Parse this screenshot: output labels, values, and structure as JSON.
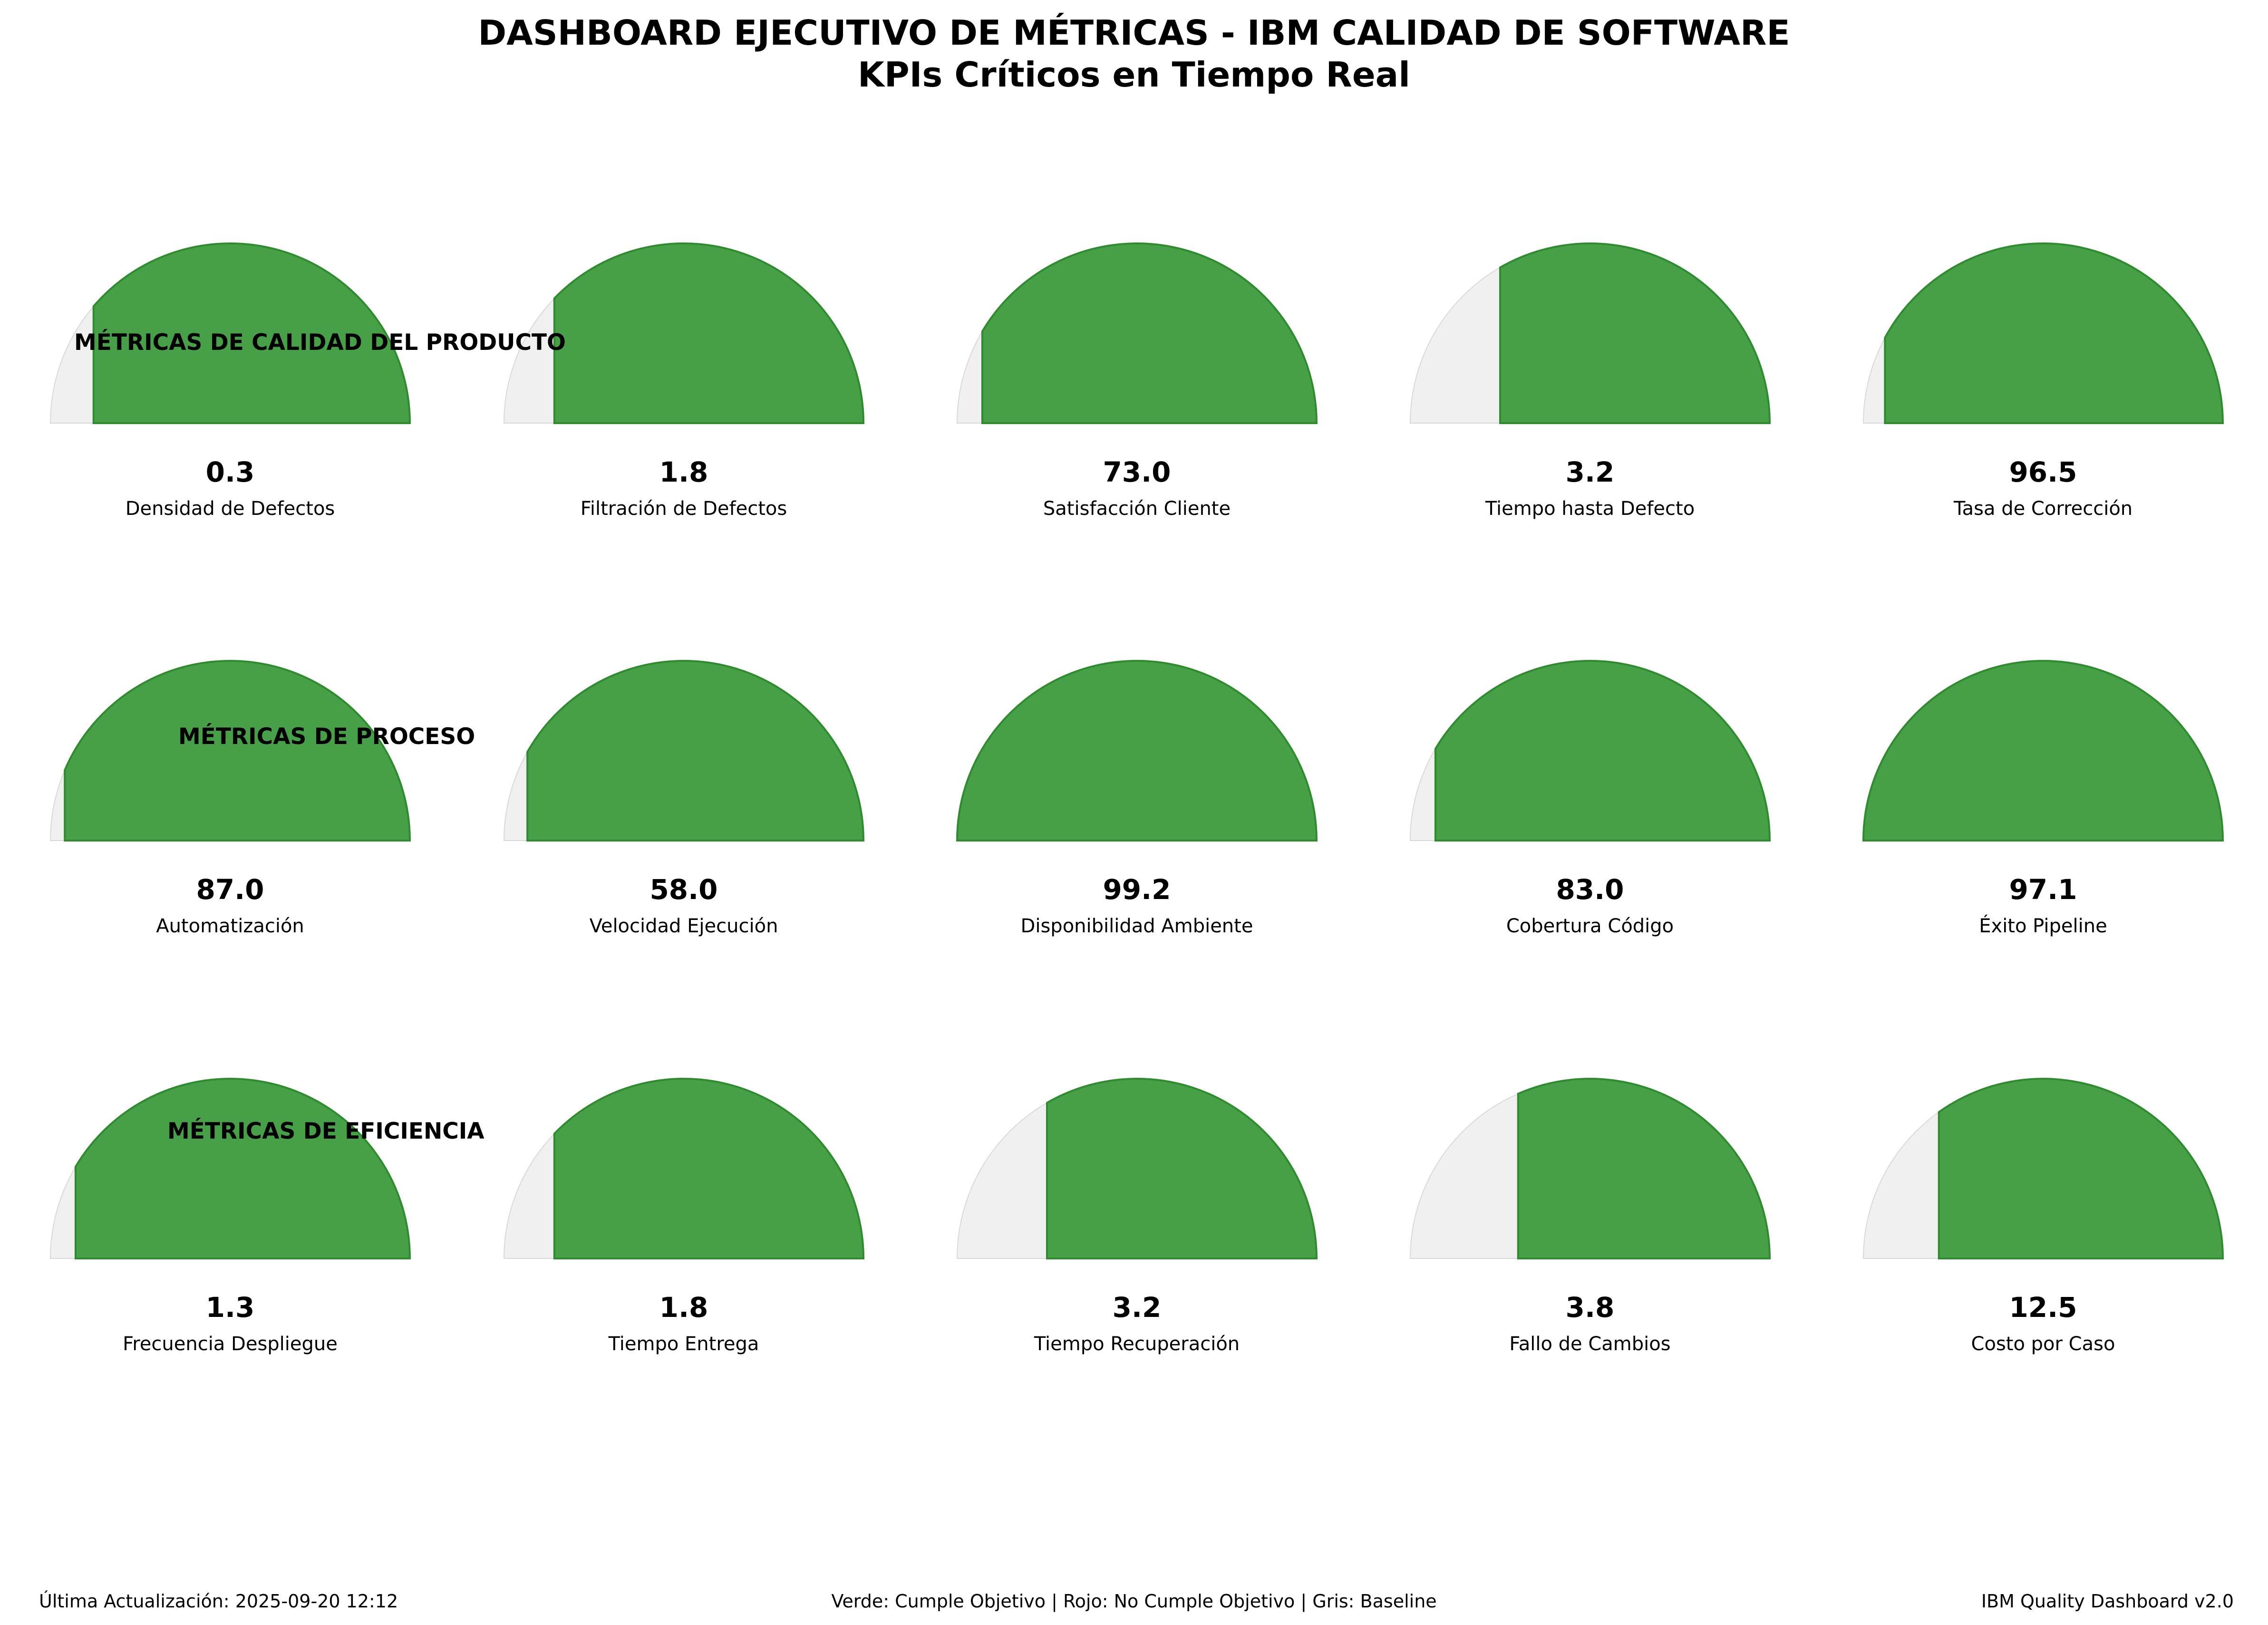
{
  "header": {
    "title": "DASHBOARD EJECUTIVO DE MÉTRICAS - IBM CALIDAD DE SOFTWARE",
    "subtitle": "KPIs Críticos en Tiempo Real"
  },
  "colors": {
    "fill": "#47a047",
    "fill_edge": "#2e8b2e",
    "baseline": "#f0f0f0",
    "baseline_edge": "#d9d9d9"
  },
  "chart_data": {
    "type": "gauge",
    "rows": [
      {
        "section_label": "MÉTRICAS DE CALIDAD DEL PRODUCTO",
        "gauges": [
          {
            "value": "0.3",
            "label": "Densidad de Defectos",
            "fill_fraction": 0.88
          },
          {
            "value": "1.8",
            "label": "Filtración de Defectos",
            "fill_fraction": 0.86
          },
          {
            "value": "73.0",
            "label": "Satisfacción Cliente",
            "fill_fraction": 0.93
          },
          {
            "value": "3.2",
            "label": "Tiempo hasta Defecto",
            "fill_fraction": 0.75
          },
          {
            "value": "96.5",
            "label": "Tasa de Corrección",
            "fill_fraction": 0.94
          }
        ]
      },
      {
        "section_label": "MÉTRICAS DE PROCESO",
        "gauges": [
          {
            "value": "87.0",
            "label": "Automatización",
            "fill_fraction": 0.96
          },
          {
            "value": "58.0",
            "label": "Velocidad Ejecución",
            "fill_fraction": 0.935
          },
          {
            "value": "99.2",
            "label": "Disponibilidad Ambiente",
            "fill_fraction": 1.0
          },
          {
            "value": "83.0",
            "label": "Cobertura Código",
            "fill_fraction": 0.93
          },
          {
            "value": "97.1",
            "label": "Éxito Pipeline",
            "fill_fraction": 1.0
          }
        ]
      },
      {
        "section_label": "MÉTRICAS DE EFICIENCIA",
        "gauges": [
          {
            "value": "1.3",
            "label": "Frecuencia Despliegue",
            "fill_fraction": 0.93
          },
          {
            "value": "1.8",
            "label": "Tiempo Entrega",
            "fill_fraction": 0.86
          },
          {
            "value": "3.2",
            "label": "Tiempo Recuperación",
            "fill_fraction": 0.75
          },
          {
            "value": "3.8",
            "label": "Fallo de Cambios",
            "fill_fraction": 0.7
          },
          {
            "value": "12.5",
            "label": "Costo por Caso",
            "fill_fraction": 0.79
          }
        ]
      }
    ],
    "legend": "Verde: Cumple Objetivo | Rojo: No Cumple Objetivo | Gris: Baseline"
  },
  "footer": {
    "last_update": "Última Actualización: 2025-09-20 12:12",
    "legend": "Verde: Cumple Objetivo | Rojo: No Cumple Objetivo | Gris: Baseline",
    "version": "IBM Quality Dashboard v2.0"
  }
}
